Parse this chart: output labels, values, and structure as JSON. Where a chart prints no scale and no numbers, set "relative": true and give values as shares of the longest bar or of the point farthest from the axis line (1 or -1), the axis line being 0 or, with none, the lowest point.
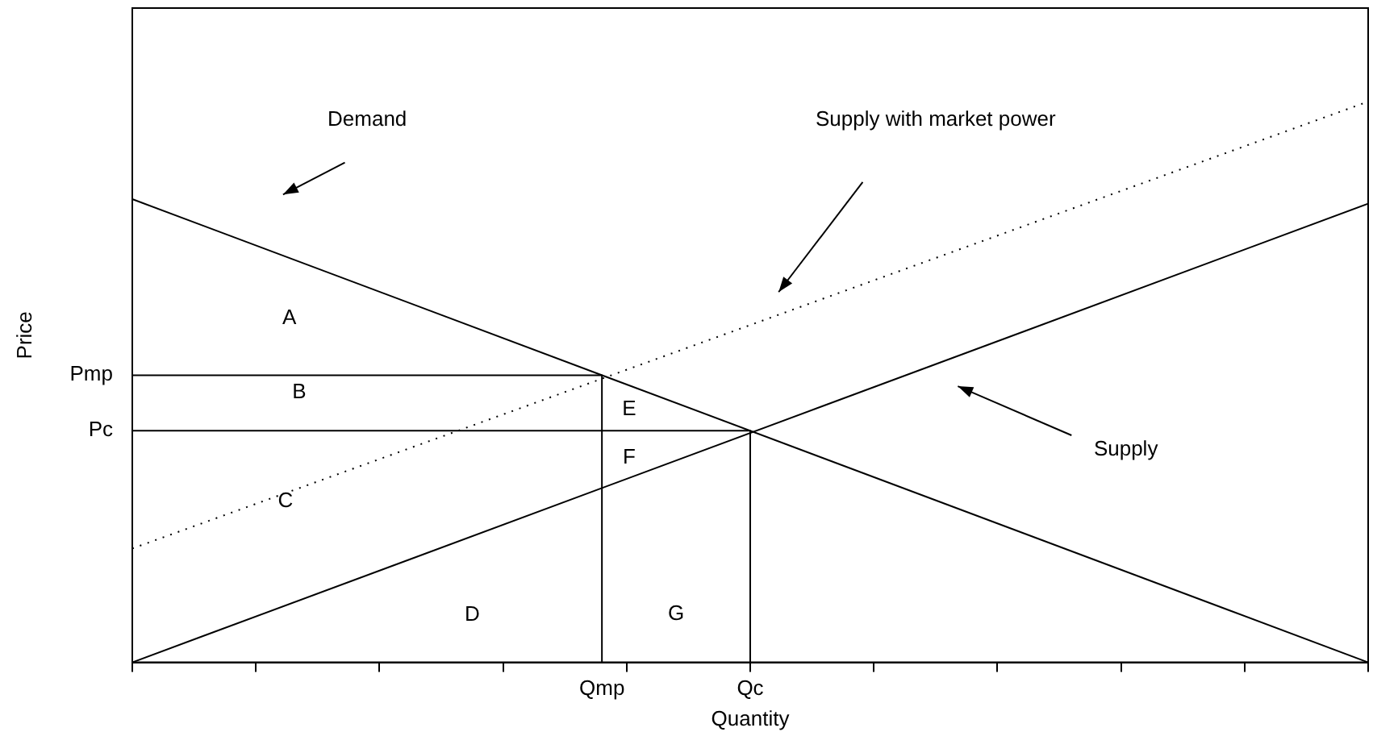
{
  "chart_data": {
    "type": "line",
    "xlabel": "Quantity",
    "ylabel": "Price",
    "relative": true,
    "categories": [
      null,
      null,
      null,
      null,
      null,
      null,
      null,
      null,
      null,
      null,
      null,
      null,
      null,
      null,
      null,
      null,
      null,
      null,
      null,
      "Qmp",
      null,
      null,
      null,
      null,
      null,
      "Qc",
      null,
      null,
      null,
      null,
      null,
      null,
      null,
      null,
      null,
      null,
      null,
      null,
      null,
      null,
      null,
      null,
      null,
      null,
      null,
      null,
      null,
      null,
      null,
      null,
      null
    ],
    "series": [
      {
        "color": "#000000",
        "values": [
          0.826,
          null,
          null,
          null,
          null,
          null,
          null,
          null,
          null,
          null,
          null,
          null,
          null,
          null,
          null,
          null,
          null,
          null,
          null,
          null,
          null,
          null,
          null,
          null,
          null,
          null,
          null,
          null,
          null,
          null,
          null,
          null,
          null,
          null,
          null,
          null,
          null,
          null,
          null,
          null,
          null,
          null,
          null,
          null,
          null,
          null,
          null,
          null,
          null,
          null,
          0
        ]
      },
      {
        "color": "#000000",
        "values": [
          0,
          null,
          null,
          null,
          null,
          null,
          null,
          null,
          null,
          null,
          null,
          null,
          null,
          null,
          null,
          null,
          null,
          null,
          null,
          null,
          null,
          null,
          null,
          null,
          null,
          null,
          null,
          null,
          null,
          null,
          null,
          null,
          null,
          null,
          null,
          null,
          null,
          null,
          null,
          null,
          null,
          null,
          null,
          null,
          null,
          null,
          null,
          null,
          null,
          null,
          0.818
        ]
      },
      {
        "color": "#000000",
        "line_style": "dotted",
        "values": [
          0.203,
          null,
          null,
          null,
          null,
          null,
          null,
          null,
          null,
          null,
          null,
          null,
          null,
          null,
          null,
          null,
          null,
          null,
          null,
          null,
          null,
          null,
          null,
          null,
          null,
          null,
          null,
          null,
          null,
          null,
          null,
          null,
          null,
          null,
          null,
          null,
          null,
          null,
          null,
          null,
          null,
          null,
          null,
          null,
          null,
          null,
          null,
          null,
          null,
          null,
          1
        ]
      },
      {
        "color": "#000000",
        "values": [
          0.512,
          null,
          null,
          null,
          null,
          null,
          null,
          null,
          null,
          null,
          null,
          null,
          null,
          null,
          null,
          null,
          null,
          null,
          null,
          0.512,
          null,
          null,
          null,
          null,
          null,
          null,
          null,
          null,
          null,
          null,
          null,
          null,
          null,
          null,
          null,
          null,
          null,
          null,
          null,
          null,
          null,
          null,
          null,
          null,
          null,
          null,
          null,
          null,
          null,
          null,
          null
        ]
      },
      {
        "color": "#000000",
        "values": [
          0.413,
          null,
          null,
          null,
          null,
          null,
          null,
          null,
          null,
          null,
          null,
          null,
          null,
          null,
          null,
          null,
          null,
          null,
          null,
          null,
          null,
          null,
          null,
          null,
          null,
          0.413,
          null,
          null,
          null,
          null,
          null,
          null,
          null,
          null,
          null,
          null,
          null,
          null,
          null,
          null,
          null,
          null,
          null,
          null,
          null,
          null,
          null,
          null,
          null,
          null,
          null
        ]
      },
      {
        "color": "#000000",
        "x": [
          "Qmp",
          "Qmp"
        ],
        "values": [
          0.512,
          0
        ]
      },
      {
        "color": "#000000",
        "x": [
          "Qc",
          "Qc"
        ],
        "values": [
          0.413,
          0
        ]
      }
    ],
    "marker": "none",
    "line_style": "solid",
    "grid": false,
    "legend": false,
    "annotations": [
      "Demand",
      "Supply with market power",
      "Supply",
      "A",
      "B",
      "C",
      "D",
      "E",
      "F",
      "G",
      "Pmp",
      "Pc"
    ]
  }
}
